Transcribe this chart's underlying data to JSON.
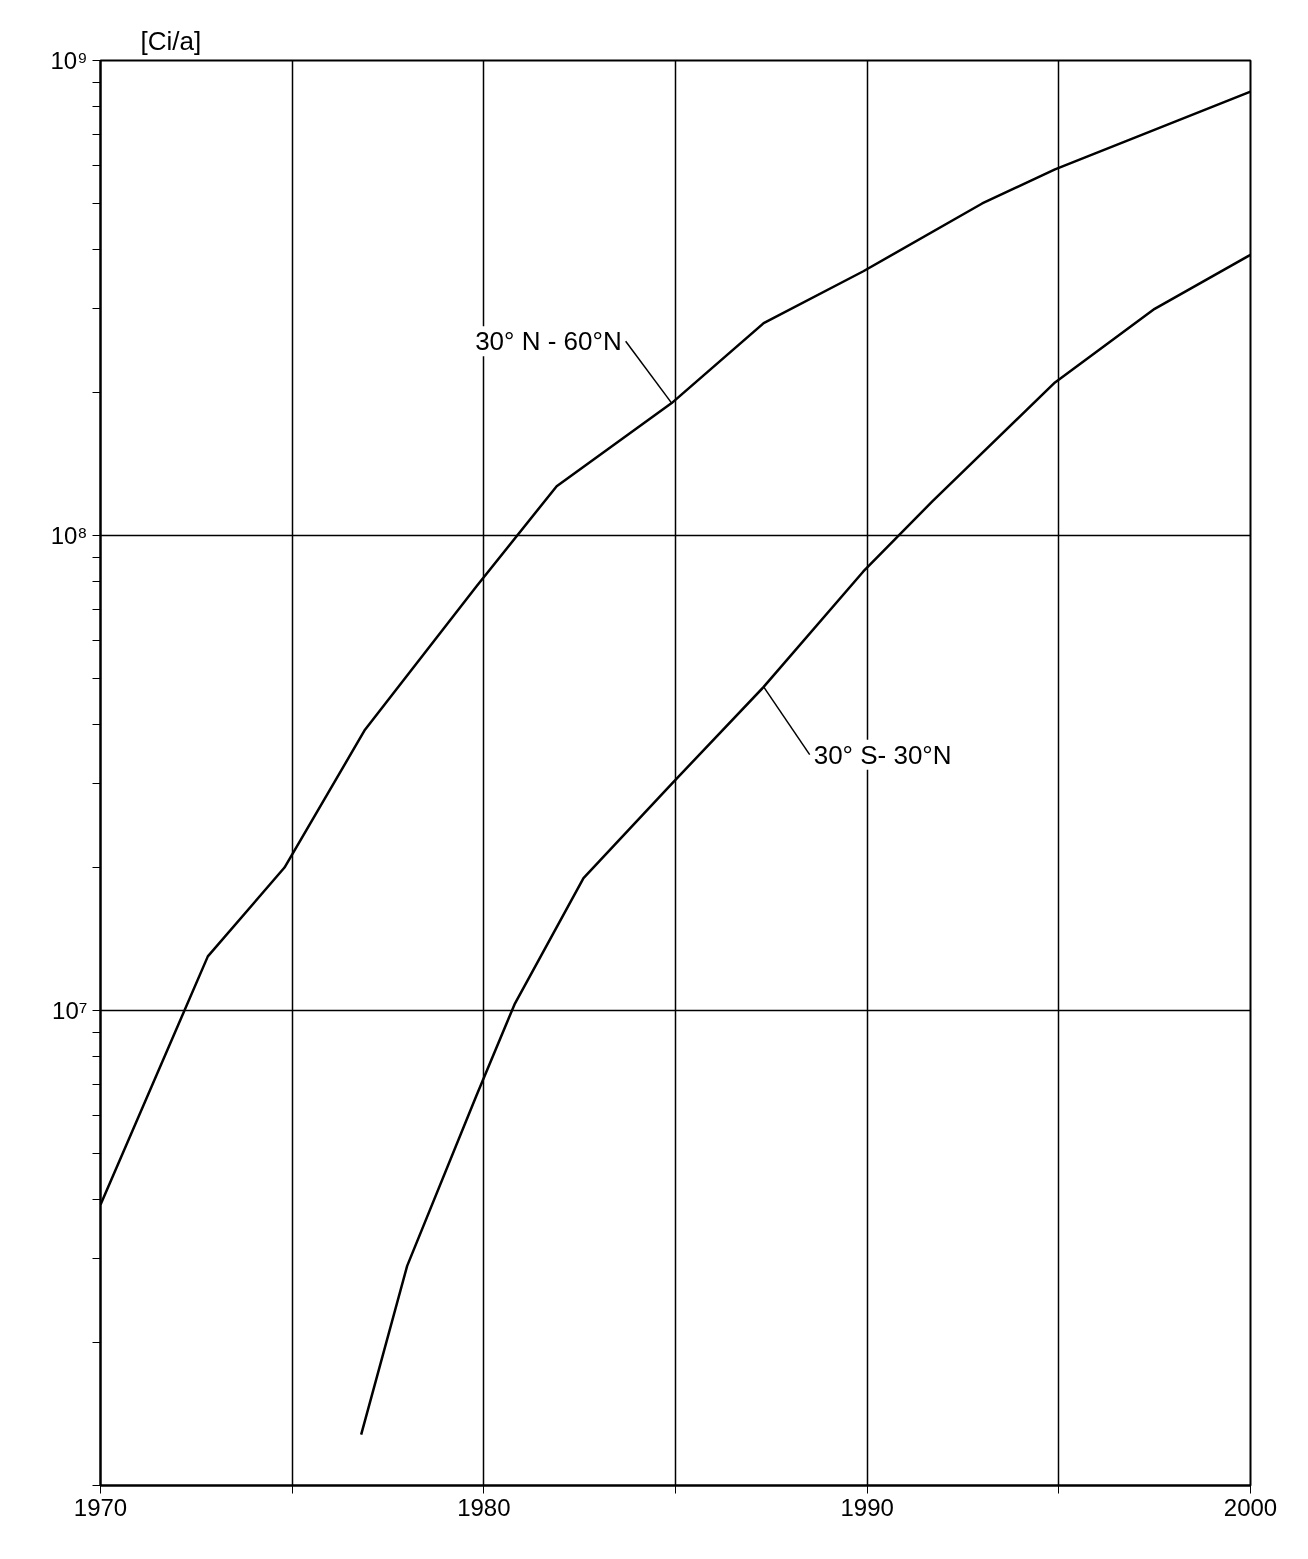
{
  "chart_data": {
    "type": "line",
    "ylabel": "[Ci/a]",
    "log": "y",
    "grid": true,
    "marker": "none",
    "line_style": "solid",
    "xlim": [
      1970,
      2000
    ],
    "ylim": [
      1000000,
      1000000000
    ],
    "xticks": [
      1970,
      {
        "value": 1975,
        "label": null
      },
      1980,
      {
        "value": 1985,
        "label": null
      },
      1990,
      {
        "value": 1995,
        "label": null
      },
      2000
    ],
    "yticks": [
      {
        "value": 1000000,
        "label": null
      },
      {
        "value": 2000000,
        "label": null
      },
      {
        "value": 3000000,
        "label": null
      },
      {
        "value": 4000000,
        "label": null
      },
      {
        "value": 5000000,
        "label": null
      },
      {
        "value": 6000000,
        "label": null
      },
      {
        "value": 7000000,
        "label": null
      },
      {
        "value": 8000000,
        "label": null
      },
      {
        "value": 9000000,
        "label": null
      },
      {
        "value": 10000000,
        "label": "10⁷"
      },
      {
        "value": 20000000,
        "label": null
      },
      {
        "value": 30000000,
        "label": null
      },
      {
        "value": 40000000,
        "label": null
      },
      {
        "value": 50000000,
        "label": null
      },
      {
        "value": 60000000,
        "label": null
      },
      {
        "value": 70000000,
        "label": null
      },
      {
        "value": 80000000,
        "label": null
      },
      {
        "value": 90000000,
        "label": null
      },
      {
        "value": 100000000,
        "label": "10⁸"
      },
      {
        "value": 200000000,
        "label": null
      },
      {
        "value": 300000000,
        "label": null
      },
      {
        "value": 400000000,
        "label": null
      },
      {
        "value": 500000000,
        "label": null
      },
      {
        "value": 600000000,
        "label": null
      },
      {
        "value": 700000000,
        "label": null
      },
      {
        "value": 800000000,
        "label": null
      },
      {
        "value": 900000000,
        "label": null
      },
      {
        "value": 1000000000,
        "label": "10⁹"
      }
    ],
    "series": [
      {
        "name": "30° N - 60°N",
        "color": "#000000",
        "x": [
          1970,
          1972.8,
          1974.8,
          1976.9,
          1979.8,
          1981.9,
          1984.9,
          1987.3,
          1989.9,
          1993.0,
          1994.9,
          2000
        ],
        "values": [
          3900000,
          13000000,
          20000000,
          39000000,
          78000000,
          127000000,
          190000000,
          280000000,
          360000000,
          500000000,
          590000000,
          860000000
        ]
      },
      {
        "name": "30° S- 30°N",
        "color": "#000000",
        "x": [
          1976.8,
          1978.0,
          1979.8,
          1980.8,
          1982.6,
          1984.9,
          1987.3,
          1989.9,
          1991.7,
          1994.9,
          1997.5,
          2000
        ],
        "values": [
          1280000,
          2900000,
          6600000,
          10300000,
          19000000,
          30000000,
          48000000,
          84000000,
          118000000,
          210000000,
          300000000,
          390000000
        ]
      }
    ]
  }
}
